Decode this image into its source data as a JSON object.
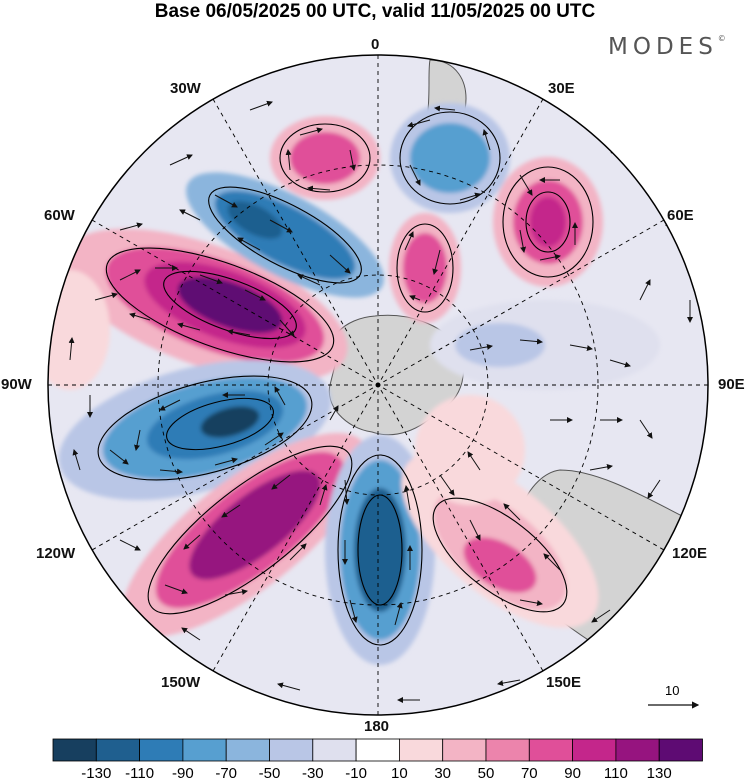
{
  "title": "Base 06/05/2025 00 UTC, valid 11/05/2025 00 UTC",
  "logo": {
    "text": "MODES",
    "mark": "©"
  },
  "longitude_labels": {
    "lon_0": "0",
    "lon_30e": "30E",
    "lon_60e": "60E",
    "lon_90e": "90E",
    "lon_120e": "120E",
    "lon_150e": "150E",
    "lon_180": "180",
    "lon_150w": "150W",
    "lon_120w": "120W",
    "lon_90w": "90W",
    "lon_60w": "60W",
    "lon_30w": "30W"
  },
  "reference_vector": {
    "label": "10"
  },
  "colorbar": {
    "labels": [
      "-130",
      "-110",
      "-90",
      "-70",
      "-50",
      "-30",
      "-10",
      "10",
      "30",
      "50",
      "70",
      "90",
      "110",
      "130"
    ],
    "colors": [
      "#173f5f",
      "#1f5f8f",
      "#2e7cb6",
      "#579fd0",
      "#8bb5dd",
      "#b9c6e6",
      "#dfe0ee",
      "#ffffff",
      "#f9d9dc",
      "#f3b4c5",
      "#ec84ac",
      "#e04f99",
      "#c4268b",
      "#96147f",
      "#5e0b73"
    ]
  },
  "map": {
    "projection": "south-polar-stereographic",
    "field_colors": {
      "land": "#cfcfcf",
      "coast": "#555555",
      "grid": "#000000"
    }
  }
}
